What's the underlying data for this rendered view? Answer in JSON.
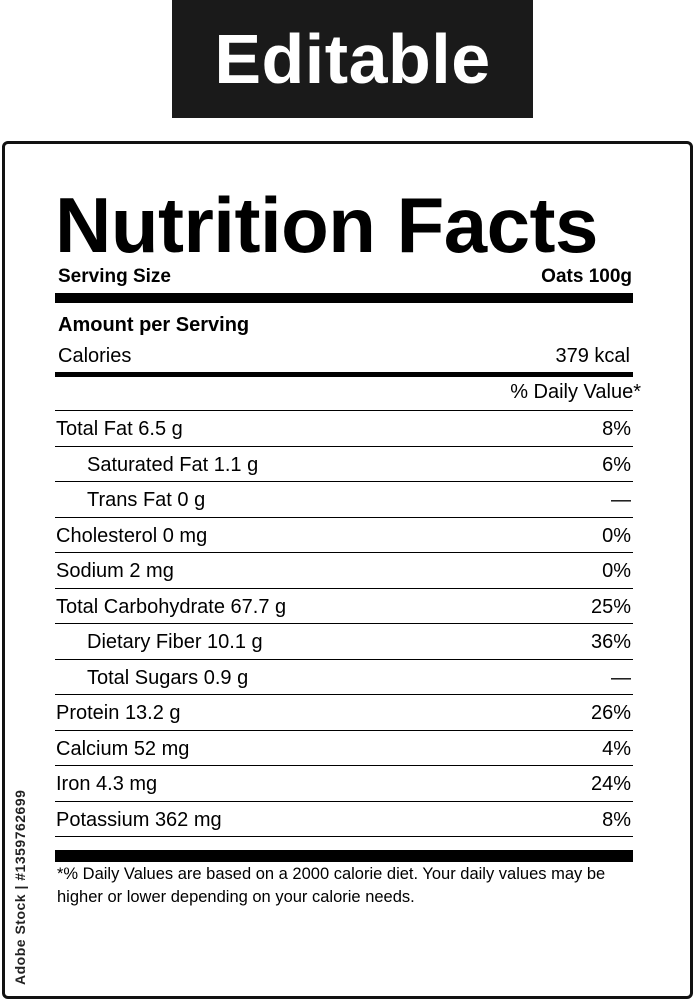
{
  "banner": {
    "text": "Editable"
  },
  "label": {
    "title": "Nutrition Facts",
    "serving_label": "Serving Size",
    "serving_value": "Oats 100g",
    "amount_per_serving": "Amount per Serving",
    "calories_label": "Calories",
    "calories_value": "379 kcal",
    "daily_value_header": "% Daily Value*",
    "rows": [
      {
        "name": "Total Fat",
        "amount": "6.5 g",
        "dv": "8%",
        "indent": false
      },
      {
        "name": "Saturated Fat",
        "amount": "1.1 g",
        "dv": "6%",
        "indent": true
      },
      {
        "name": "Trans Fat",
        "amount": "0 g",
        "dv": "—",
        "indent": true
      },
      {
        "name": "Cholesterol",
        "amount": "0 mg",
        "dv": "0%",
        "indent": false
      },
      {
        "name": "Sodium",
        "amount": "2 mg",
        "dv": "0%",
        "indent": false
      },
      {
        "name": "Total Carbohydrate",
        "amount": "67.7 g",
        "dv": "25%",
        "indent": false
      },
      {
        "name": "Dietary Fiber",
        "amount": "10.1 g",
        "dv": "36%",
        "indent": true
      },
      {
        "name": "Total Sugars",
        "amount": "0.9 g",
        "dv": "—",
        "indent": true
      },
      {
        "name": "Protein",
        "amount": "13.2 g",
        "dv": "26%",
        "indent": false
      },
      {
        "name": "Calcium",
        "amount": "52 mg",
        "dv": "4%",
        "indent": false
      },
      {
        "name": "Iron",
        "amount": "4.3 mg",
        "dv": "24%",
        "indent": false
      },
      {
        "name": "Potassium",
        "amount": "362 mg",
        "dv": "8%",
        "indent": false
      }
    ],
    "footnote": "*% Daily Values are based on a 2000 calorie diet. Your daily values may be higher or lower depending on your calorie needs."
  },
  "watermark": {
    "text": "Adobe Stock | #1359762699"
  }
}
